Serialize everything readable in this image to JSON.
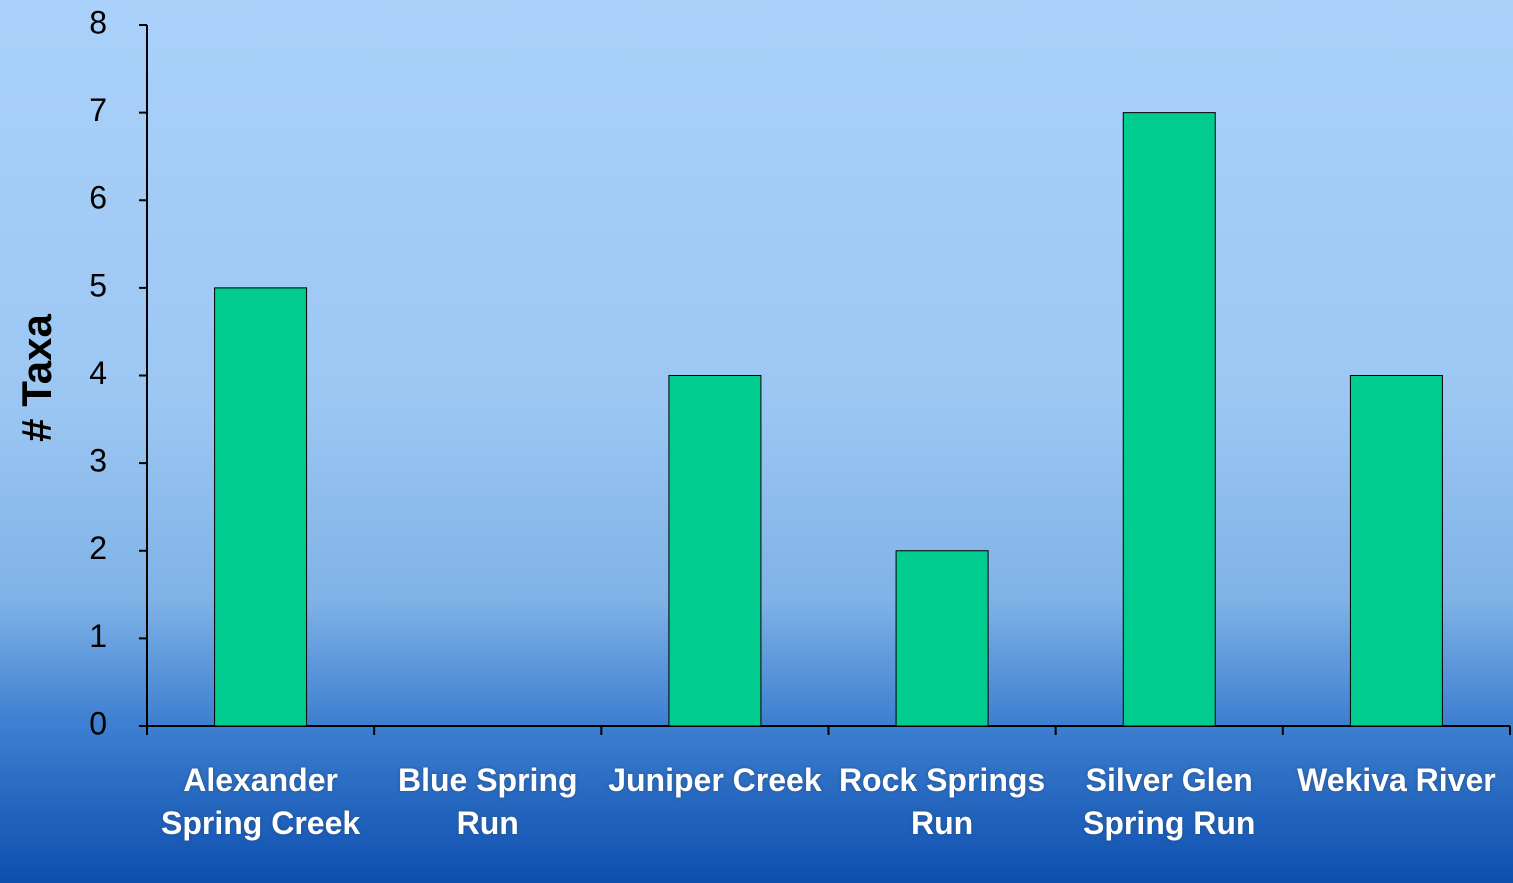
{
  "chart_data": {
    "type": "bar",
    "y_label": "# Taxa",
    "categories": [
      "Alexander Spring Creek",
      "Blue Spring Run",
      "Juniper Creek",
      "Rock Springs Run",
      "Silver Glen Spring Run",
      "Wekiva River"
    ],
    "values": [
      5,
      0,
      4,
      2,
      7,
      4
    ],
    "color": "#00cc90",
    "ylim": [
      0,
      8
    ],
    "yticks": [
      0,
      1,
      2,
      3,
      4,
      5,
      6,
      7,
      8
    ]
  }
}
